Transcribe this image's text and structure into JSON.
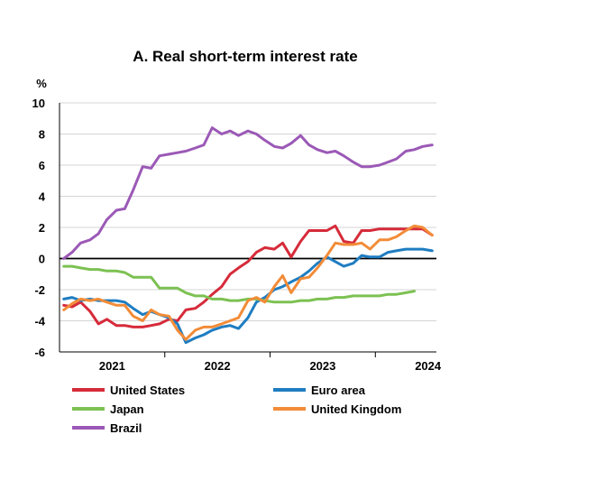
{
  "chart_data": {
    "type": "line",
    "title": "A. Real short-term interest rate",
    "ylabel": "%",
    "xlabel": "",
    "ylim": [
      -6,
      10
    ],
    "yticks": [
      10,
      8,
      6,
      4,
      2,
      0,
      -2,
      -4,
      -6
    ],
    "xlim": [
      2020.5,
      2024.08
    ],
    "xticks": [
      {
        "label": "2021",
        "value": 2021.0
      },
      {
        "label": "2022",
        "value": 2022.0
      },
      {
        "label": "2023",
        "value": 2023.0
      },
      {
        "label": "2024",
        "value": 2024.0
      }
    ],
    "grid": true,
    "zero_line": true,
    "legend_position": "bottom",
    "series": [
      {
        "name": "United States",
        "color": "#d62b3a",
        "x": [
          2020.54,
          2020.62,
          2020.7,
          2020.79,
          2020.87,
          2020.95,
          2021.04,
          2021.12,
          2021.2,
          2021.29,
          2021.37,
          2021.45,
          2021.54,
          2021.62,
          2021.7,
          2021.79,
          2021.87,
          2021.95,
          2022.04,
          2022.12,
          2022.2,
          2022.29,
          2022.37,
          2022.45,
          2022.54,
          2022.62,
          2022.7,
          2022.79,
          2022.87,
          2022.95,
          2023.04,
          2023.12,
          2023.2,
          2023.29,
          2023.37,
          2023.45,
          2023.54,
          2023.62,
          2023.7,
          2023.79,
          2023.87,
          2023.95,
          2024.04
        ],
        "values": [
          -3.0,
          -3.1,
          -2.8,
          -3.4,
          -4.2,
          -3.9,
          -4.3,
          -4.3,
          -4.4,
          -4.4,
          -4.3,
          -4.2,
          -3.9,
          -4.0,
          -3.3,
          -3.2,
          -2.8,
          -2.3,
          -1.8,
          -1.0,
          -0.6,
          -0.2,
          0.4,
          0.7,
          0.6,
          1.0,
          0.1,
          1.1,
          1.8,
          1.8,
          1.8,
          2.1,
          1.1,
          1.0,
          1.8,
          1.8,
          1.9,
          1.9,
          1.9,
          1.9,
          1.9,
          1.9,
          1.5
        ]
      },
      {
        "name": "Euro area",
        "color": "#1f7dc1",
        "x": [
          2020.54,
          2020.62,
          2020.7,
          2020.79,
          2020.87,
          2020.95,
          2021.04,
          2021.12,
          2021.2,
          2021.29,
          2021.37,
          2021.45,
          2021.54,
          2021.62,
          2021.7,
          2021.79,
          2021.87,
          2021.95,
          2022.04,
          2022.12,
          2022.2,
          2022.29,
          2022.37,
          2022.45,
          2022.54,
          2022.62,
          2022.7,
          2022.79,
          2022.87,
          2022.95,
          2023.04,
          2023.12,
          2023.2,
          2023.29,
          2023.37,
          2023.45,
          2023.54,
          2023.62,
          2023.7,
          2023.79,
          2023.87,
          2023.95,
          2024.04
        ],
        "values": [
          -2.6,
          -2.5,
          -2.7,
          -2.6,
          -2.7,
          -2.7,
          -2.7,
          -2.8,
          -3.2,
          -3.6,
          -3.4,
          -3.6,
          -3.8,
          -4.2,
          -5.4,
          -5.1,
          -4.9,
          -4.6,
          -4.4,
          -4.3,
          -4.5,
          -3.8,
          -2.8,
          -2.5,
          -2.0,
          -1.8,
          -1.5,
          -1.2,
          -0.8,
          -0.3,
          0.1,
          -0.2,
          -0.5,
          -0.3,
          0.2,
          0.1,
          0.1,
          0.4,
          0.5,
          0.6,
          0.6,
          0.6,
          0.5
        ]
      },
      {
        "name": "Japan",
        "color": "#7cc152",
        "x": [
          2020.54,
          2020.62,
          2020.7,
          2020.79,
          2020.87,
          2020.95,
          2021.04,
          2021.12,
          2021.2,
          2021.29,
          2021.37,
          2021.45,
          2021.54,
          2021.62,
          2021.7,
          2021.79,
          2021.87,
          2021.95,
          2022.04,
          2022.12,
          2022.2,
          2022.29,
          2022.37,
          2022.45,
          2022.54,
          2022.62,
          2022.7,
          2022.79,
          2022.87,
          2022.95,
          2023.04,
          2023.12,
          2023.2,
          2023.29,
          2023.37,
          2023.45,
          2023.54,
          2023.62,
          2023.7,
          2023.79,
          2023.87
        ],
        "values": [
          -0.5,
          -0.5,
          -0.6,
          -0.7,
          -0.7,
          -0.8,
          -0.8,
          -0.9,
          -1.2,
          -1.2,
          -1.2,
          -1.9,
          -1.9,
          -1.9,
          -2.2,
          -2.4,
          -2.4,
          -2.6,
          -2.6,
          -2.7,
          -2.7,
          -2.6,
          -2.6,
          -2.7,
          -2.8,
          -2.8,
          -2.8,
          -2.7,
          -2.7,
          -2.6,
          -2.6,
          -2.5,
          -2.5,
          -2.4,
          -2.4,
          -2.4,
          -2.4,
          -2.3,
          -2.3,
          -2.2,
          -2.1
        ]
      },
      {
        "name": "United Kingdom",
        "color": "#f28c38",
        "x": [
          2020.54,
          2020.62,
          2020.7,
          2020.79,
          2020.87,
          2020.95,
          2021.04,
          2021.12,
          2021.2,
          2021.29,
          2021.37,
          2021.45,
          2021.54,
          2021.62,
          2021.7,
          2021.79,
          2021.87,
          2021.95,
          2022.04,
          2022.12,
          2022.2,
          2022.29,
          2022.37,
          2022.45,
          2022.54,
          2022.62,
          2022.7,
          2022.79,
          2022.87,
          2022.95,
          2023.04,
          2023.12,
          2023.2,
          2023.29,
          2023.37,
          2023.45,
          2023.54,
          2023.62,
          2023.7,
          2023.79,
          2023.87,
          2023.95,
          2024.04
        ],
        "values": [
          -3.3,
          -2.9,
          -2.6,
          -2.7,
          -2.6,
          -2.8,
          -3.0,
          -3.0,
          -3.7,
          -4.0,
          -3.3,
          -3.6,
          -3.7,
          -4.6,
          -5.2,
          -4.6,
          -4.4,
          -4.4,
          -4.2,
          -4.0,
          -3.8,
          -2.7,
          -2.5,
          -2.8,
          -1.8,
          -1.1,
          -2.2,
          -1.3,
          -1.2,
          -0.6,
          0.2,
          1.0,
          0.9,
          0.9,
          1.0,
          0.6,
          1.2,
          1.2,
          1.4,
          1.8,
          2.1,
          2.0,
          1.5
        ]
      },
      {
        "name": "Brazil",
        "color": "#9b59b6",
        "x": [
          2020.54,
          2020.62,
          2020.7,
          2020.79,
          2020.87,
          2020.95,
          2021.04,
          2021.12,
          2021.2,
          2021.29,
          2021.37,
          2021.45,
          2021.54,
          2021.62,
          2021.7,
          2021.79,
          2021.87,
          2021.95,
          2022.04,
          2022.12,
          2022.2,
          2022.29,
          2022.37,
          2022.45,
          2022.54,
          2022.62,
          2022.7,
          2022.79,
          2022.87,
          2022.95,
          2023.04,
          2023.12,
          2023.2,
          2023.29,
          2023.37,
          2023.45,
          2023.54,
          2023.62,
          2023.7,
          2023.79,
          2023.87,
          2023.95,
          2024.04
        ],
        "values": [
          0.0,
          0.4,
          1.0,
          1.2,
          1.6,
          2.5,
          3.1,
          3.2,
          4.4,
          5.9,
          5.8,
          6.6,
          6.7,
          6.8,
          6.9,
          7.1,
          7.3,
          8.4,
          8.0,
          8.2,
          7.9,
          8.2,
          8.0,
          7.6,
          7.2,
          7.1,
          7.4,
          7.9,
          7.3,
          7.0,
          6.8,
          6.9,
          6.6,
          6.2,
          5.9,
          5.9,
          6.0,
          6.2,
          6.4,
          6.9,
          7.0,
          7.2,
          7.3
        ]
      }
    ]
  }
}
